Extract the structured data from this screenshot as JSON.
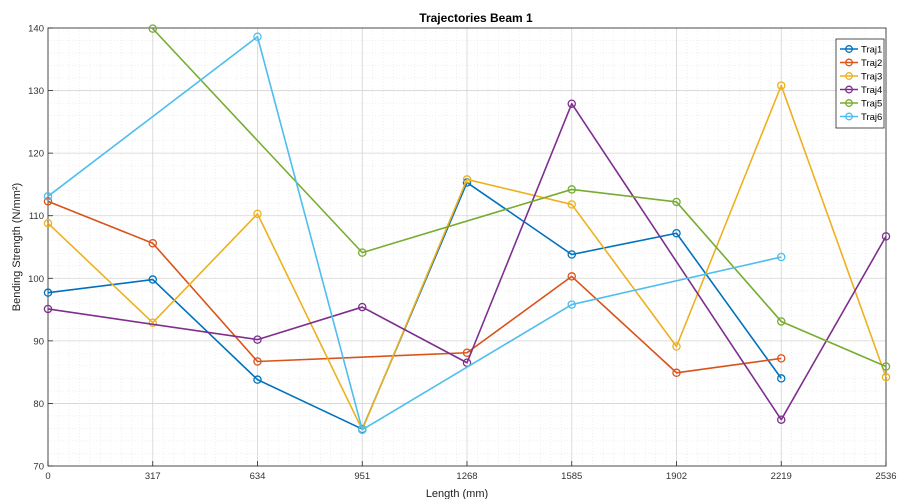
{
  "chart_data": {
    "type": "line",
    "title": "Trajectories Beam 1",
    "xlabel": "Length (mm)",
    "ylabel": "Bending Strength (N/mm²)",
    "x_ticks": [
      0,
      317,
      634,
      951,
      1268,
      1585,
      1902,
      2219,
      2536
    ],
    "xlim": [
      0,
      2536
    ],
    "ylim": [
      70,
      140
    ],
    "y_ticks": [
      70,
      80,
      90,
      100,
      110,
      120,
      130,
      140
    ],
    "grid": true,
    "minor_grid": true,
    "legend_position": "top-right",
    "series": [
      {
        "name": "Traj1",
        "color": "#0072BD",
        "x": [
          0,
          317,
          634,
          951,
          1268,
          1585,
          1902,
          2219
        ],
        "values": [
          97.7,
          99.8,
          83.8,
          75.9,
          115.3,
          103.8,
          107.2,
          84.0
        ]
      },
      {
        "name": "Traj2",
        "color": "#D95319",
        "x": [
          0,
          317,
          634,
          1268,
          1585,
          1902,
          2219
        ],
        "values": [
          112.3,
          105.6,
          86.7,
          88.1,
          100.3,
          84.9,
          87.2
        ]
      },
      {
        "name": "Traj3",
        "color": "#EDB120",
        "x": [
          0,
          317,
          634,
          951,
          1268,
          1585,
          1902,
          2219,
          2536
        ],
        "values": [
          108.8,
          92.9,
          110.3,
          75.8,
          115.8,
          111.8,
          89.1,
          130.8,
          84.2
        ]
      },
      {
        "name": "Traj4",
        "color": "#7E2F8E",
        "x": [
          0,
          634,
          951,
          1268,
          1585,
          2219,
          2536
        ],
        "values": [
          95.1,
          90.2,
          95.4,
          86.5,
          127.9,
          77.4,
          106.7
        ]
      },
      {
        "name": "Traj5",
        "color": "#77AC30",
        "x": [
          317,
          951,
          1585,
          1902,
          2219,
          2536
        ],
        "values": [
          139.9,
          104.1,
          114.2,
          112.2,
          93.1,
          85.9
        ]
      },
      {
        "name": "Traj6",
        "color": "#4DBEEE",
        "x": [
          0,
          634,
          951,
          1585,
          2219
        ],
        "values": [
          113.1,
          138.6,
          75.8,
          95.8,
          103.4
        ]
      }
    ]
  }
}
